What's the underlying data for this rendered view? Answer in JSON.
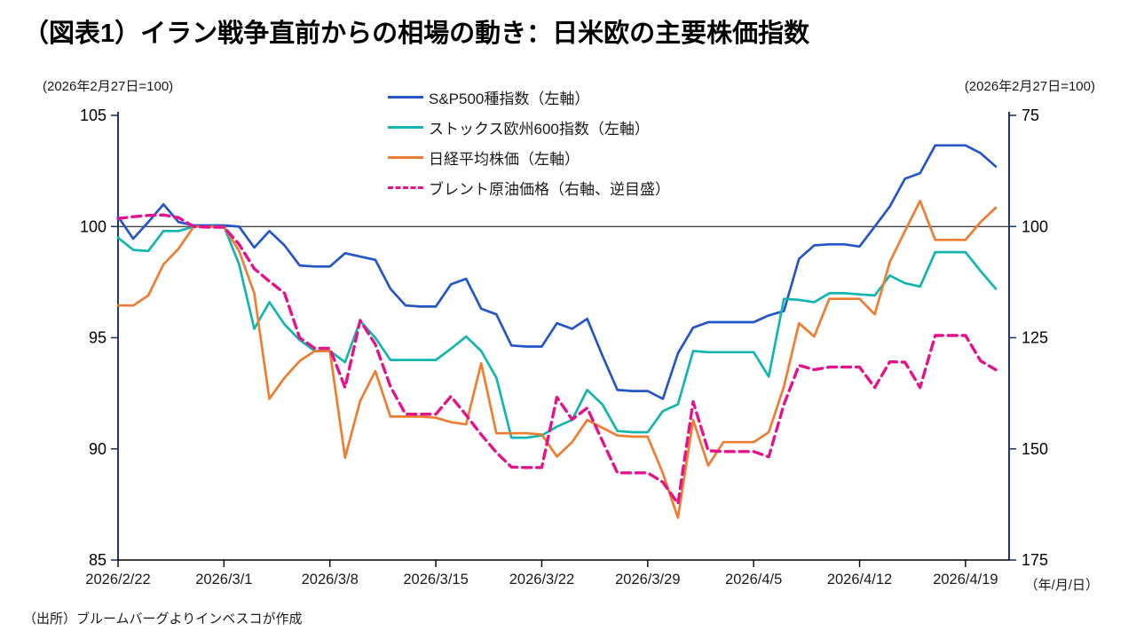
{
  "title": "（図表1）イラン戦争直前からの相場の動き：日米欧の主要株価指数",
  "left_axis_note": "(2026年2月27日=100)",
  "right_axis_note": "(2026年2月27日=100)",
  "x_axis_unit": "（年/月/日）",
  "source": "（出所）ブルームバーグよりインベスコが作成",
  "colors": {
    "sp500": "#2456c6",
    "stoxx600": "#12b5b0",
    "nikkei": "#ed7d31",
    "brent": "#e3138c",
    "axis": "#1f3864",
    "reference_line": "#000000",
    "tick_text": "#1a1a1a"
  },
  "chart_data": {
    "type": "line",
    "title": "（図表1）イラン戦争直前からの相場の動き：日米欧の主要株価指数",
    "x_tick_labels": [
      "2026/2/22",
      "2026/3/1",
      "2026/3/8",
      "2026/3/15",
      "2026/3/22",
      "2026/3/29",
      "2026/4/5",
      "2026/4/12",
      "2026/4/19"
    ],
    "x": [
      "2026/2/22",
      "2026/2/23",
      "2026/2/24",
      "2026/2/25",
      "2026/2/26",
      "2026/2/27",
      "2026/2/28",
      "2026/3/1",
      "2026/3/2",
      "2026/3/3",
      "2026/3/4",
      "2026/3/5",
      "2026/3/6",
      "2026/3/7",
      "2026/3/8",
      "2026/3/9",
      "2026/3/10",
      "2026/3/11",
      "2026/3/12",
      "2026/3/13",
      "2026/3/14",
      "2026/3/15",
      "2026/3/16",
      "2026/3/17",
      "2026/3/18",
      "2026/3/19",
      "2026/3/20",
      "2026/3/21",
      "2026/3/22",
      "2026/3/23",
      "2026/3/24",
      "2026/3/25",
      "2026/3/26",
      "2026/3/27",
      "2026/3/28",
      "2026/3/29",
      "2026/3/30",
      "2026/3/31",
      "2026/4/1",
      "2026/4/2",
      "2026/4/3",
      "2026/4/4",
      "2026/4/5",
      "2026/4/6",
      "2026/4/7",
      "2026/4/8",
      "2026/4/9",
      "2026/4/10",
      "2026/4/11",
      "2026/4/12",
      "2026/4/13",
      "2026/4/14",
      "2026/4/15",
      "2026/4/16",
      "2026/4/17",
      "2026/4/18",
      "2026/4/19",
      "2026/4/20",
      "2026/4/21"
    ],
    "left_axis": {
      "min": 85,
      "max": 105,
      "ticks": [
        105,
        100,
        95,
        90,
        85
      ]
    },
    "right_axis": {
      "min": 75,
      "max": 175,
      "ticks": [
        75,
        100,
        125,
        150,
        175
      ],
      "inverted": true
    },
    "reference_line_left_value": 100,
    "grid": false,
    "legend_position": "top-center",
    "series": [
      {
        "key": "sp500",
        "name": "S&P500種指数（左軸）",
        "axis": "left",
        "style": "solid",
        "color": "#2456c6",
        "values": [
          100.45,
          99.45,
          100.2,
          101.0,
          100.2,
          100.05,
          100.05,
          100.05,
          100.0,
          99.05,
          99.8,
          99.15,
          98.25,
          98.2,
          98.2,
          98.8,
          98.65,
          98.5,
          97.2,
          96.45,
          96.4,
          96.4,
          97.4,
          97.65,
          96.3,
          96.05,
          94.65,
          94.6,
          94.6,
          95.65,
          95.4,
          95.85,
          94.2,
          92.65,
          92.6,
          92.6,
          92.25,
          94.3,
          95.45,
          95.7,
          95.7,
          95.7,
          95.7,
          96.0,
          96.2,
          98.55,
          99.15,
          99.2,
          99.2,
          99.1,
          100.0,
          100.9,
          102.15,
          102.4,
          103.65,
          103.65,
          103.65,
          103.3,
          102.7
        ]
      },
      {
        "key": "stoxx600",
        "name": "ストックス欧州600指数（左軸）",
        "axis": "left",
        "style": "solid",
        "color": "#12b5b0",
        "values": [
          99.5,
          98.95,
          98.9,
          99.8,
          99.8,
          100.0,
          100.0,
          100.0,
          98.3,
          95.4,
          96.6,
          95.6,
          94.9,
          94.4,
          94.4,
          93.9,
          95.75,
          95.0,
          94.0,
          94.0,
          94.0,
          94.0,
          94.5,
          95.05,
          94.4,
          93.2,
          90.5,
          90.5,
          90.6,
          91.0,
          91.3,
          92.65,
          92.0,
          90.8,
          90.75,
          90.75,
          91.7,
          92.0,
          94.4,
          94.35,
          94.35,
          94.35,
          94.35,
          93.25,
          96.75,
          96.7,
          96.6,
          97.0,
          97.0,
          96.95,
          96.9,
          97.8,
          97.45,
          97.3,
          98.85,
          98.85,
          98.85,
          98.0,
          97.2
        ]
      },
      {
        "key": "nikkei",
        "name": "日経平均株価（左軸）",
        "axis": "left",
        "style": "solid",
        "color": "#ed7d31",
        "values": [
          96.45,
          96.45,
          96.9,
          98.3,
          99.0,
          100.0,
          100.0,
          100.0,
          98.9,
          97.0,
          92.25,
          93.2,
          93.95,
          94.4,
          94.4,
          89.6,
          92.15,
          93.5,
          91.45,
          91.45,
          91.45,
          91.4,
          91.2,
          91.1,
          93.85,
          90.7,
          90.7,
          90.7,
          90.65,
          89.65,
          90.3,
          91.3,
          90.95,
          90.6,
          90.55,
          90.55,
          88.9,
          86.9,
          91.3,
          89.25,
          90.3,
          90.3,
          90.3,
          90.75,
          92.8,
          95.65,
          95.05,
          96.75,
          96.75,
          96.75,
          96.05,
          98.4,
          99.8,
          101.15,
          99.4,
          99.4,
          99.4,
          100.2,
          100.85
        ]
      },
      {
        "key": "brent",
        "name": "ブレント原油価格（右軸、逆目盛）",
        "axis": "right",
        "style": "dashed",
        "color": "#e3138c",
        "values": [
          98.2,
          97.8,
          97.5,
          97.4,
          98.0,
          100.0,
          100.15,
          100.15,
          104.0,
          109.5,
          112.3,
          115.0,
          125.0,
          127.4,
          127.4,
          136.2,
          121.1,
          126.5,
          136.0,
          142.2,
          142.2,
          142.2,
          138.2,
          142.4,
          146.8,
          150.8,
          154.1,
          154.2,
          154.2,
          138.4,
          143.4,
          140.8,
          148.2,
          155.4,
          155.4,
          155.4,
          157.5,
          162.3,
          139.4,
          150.4,
          150.6,
          150.6,
          150.6,
          151.8,
          140.0,
          131.2,
          132.2,
          131.6,
          131.6,
          131.6,
          136.2,
          130.4,
          130.5,
          136.2,
          124.5,
          124.5,
          124.5,
          130.2,
          132.2
        ]
      }
    ]
  }
}
